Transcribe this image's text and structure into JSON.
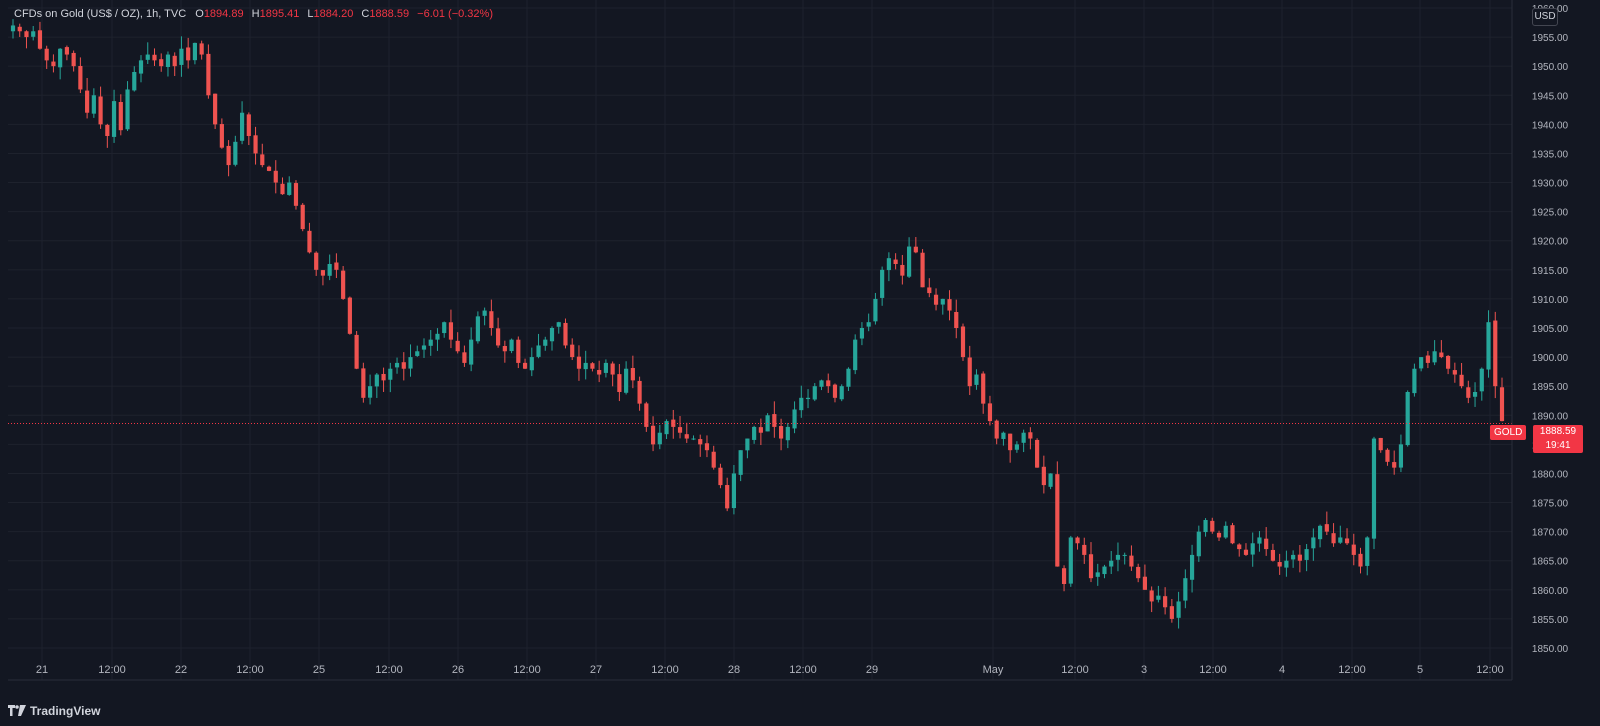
{
  "legend": {
    "symbol": "CFDs on Gold (US$ / OZ), 1h, TVC",
    "open_label": "O",
    "open": "1894.89",
    "high_label": "H",
    "high": "1895.41",
    "low_label": "L",
    "low": "1884.20",
    "close_label": "C",
    "close": "1888.59",
    "change": "−6.01 (−0.32%)"
  },
  "currency": "USD",
  "last_price": {
    "symbol_label": "GOLD",
    "price": "1888.59",
    "countdown": "19:41"
  },
  "footer": {
    "brand": "TradingView"
  },
  "colors": {
    "background": "#131722",
    "up": "#26a69a",
    "down": "#ef5350",
    "grid": "#1e222d",
    "price_line": "#f23645"
  },
  "chart_data": {
    "type": "candlestick",
    "y_ticks": [
      "1960.00",
      "1955.00",
      "1950.00",
      "1945.00",
      "1940.00",
      "1935.00",
      "1930.00",
      "1925.00",
      "1920.00",
      "1915.00",
      "1910.00",
      "1905.00",
      "1900.00",
      "1895.00",
      "1890.00",
      "1885.00",
      "1880.00",
      "1875.00",
      "1870.00",
      "1865.00",
      "1860.00",
      "1855.00",
      "1850.00"
    ],
    "x_ticks": [
      "21",
      "12:00",
      "22",
      "12:00",
      "25",
      "12:00",
      "26",
      "12:00",
      "27",
      "12:00",
      "28",
      "12:00",
      "29",
      "May",
      "12:00",
      "3",
      "12:00",
      "4",
      "12:00",
      "5",
      "12:00"
    ],
    "ylim": [
      1848.5,
      1961.0
    ],
    "close_series": [
      1957,
      1956,
      1955,
      1956,
      1953,
      1951,
      1950,
      1953,
      1952,
      1950,
      1946,
      1942,
      1945,
      1940,
      1938,
      1944,
      1939,
      1946,
      1949,
      1951,
      1952,
      1951,
      1950,
      1952,
      1950,
      1953,
      1951,
      1954,
      1952,
      1945,
      1940,
      1936,
      1933,
      1937,
      1942,
      1938,
      1935,
      1933,
      1932,
      1930,
      1928,
      1930,
      1926,
      1922,
      1918,
      1915,
      1914,
      1916,
      1915,
      1910,
      1904,
      1898,
      1893,
      1895,
      1897,
      1896,
      1898,
      1899,
      1898,
      1900,
      1901,
      1902,
      1903,
      1904,
      1906,
      1903,
      1901,
      1899,
      1903,
      1907,
      1908,
      1905,
      1902,
      1901,
      1903,
      1899,
      1898,
      1900,
      1902,
      1903,
      1905,
      1906,
      1902,
      1900,
      1898,
      1899,
      1898,
      1897,
      1899,
      1897,
      1894,
      1898,
      1896,
      1892,
      1888,
      1885,
      1887,
      1889,
      1888,
      1887,
      1886,
      1886,
      1885,
      1884,
      1881,
      1878,
      1874,
      1880,
      1884,
      1886,
      1888,
      1887,
      1890,
      1888,
      1886,
      1888,
      1891,
      1893,
      1893,
      1895,
      1896,
      1895,
      1893,
      1895,
      1898,
      1903,
      1905,
      1906,
      1910,
      1915,
      1917,
      1916,
      1914,
      1919,
      1918,
      1912,
      1911,
      1909,
      1910,
      1908,
      1905,
      1900,
      1895,
      1897,
      1892,
      1889,
      1886,
      1887,
      1884,
      1885,
      1887,
      1886,
      1881,
      1878,
      1880,
      1864,
      1861,
      1869,
      1868,
      1866,
      1862,
      1863,
      1864,
      1865,
      1866,
      1866,
      1864,
      1862,
      1860,
      1858,
      1859,
      1857,
      1855,
      1858,
      1862,
      1866,
      1870,
      1872,
      1870,
      1869,
      1871,
      1868,
      1867,
      1866,
      1868,
      1869,
      1867,
      1865,
      1864,
      1865,
      1866,
      1865,
      1867,
      1869,
      1871,
      1870,
      1868,
      1869,
      1868,
      1866,
      1864,
      1869,
      1886,
      1884,
      1882,
      1881,
      1885,
      1894,
      1898,
      1900,
      1899,
      1901,
      1900,
      1898,
      1897,
      1895,
      1893,
      1894,
      1898,
      1906,
      1895,
      1889
    ]
  }
}
